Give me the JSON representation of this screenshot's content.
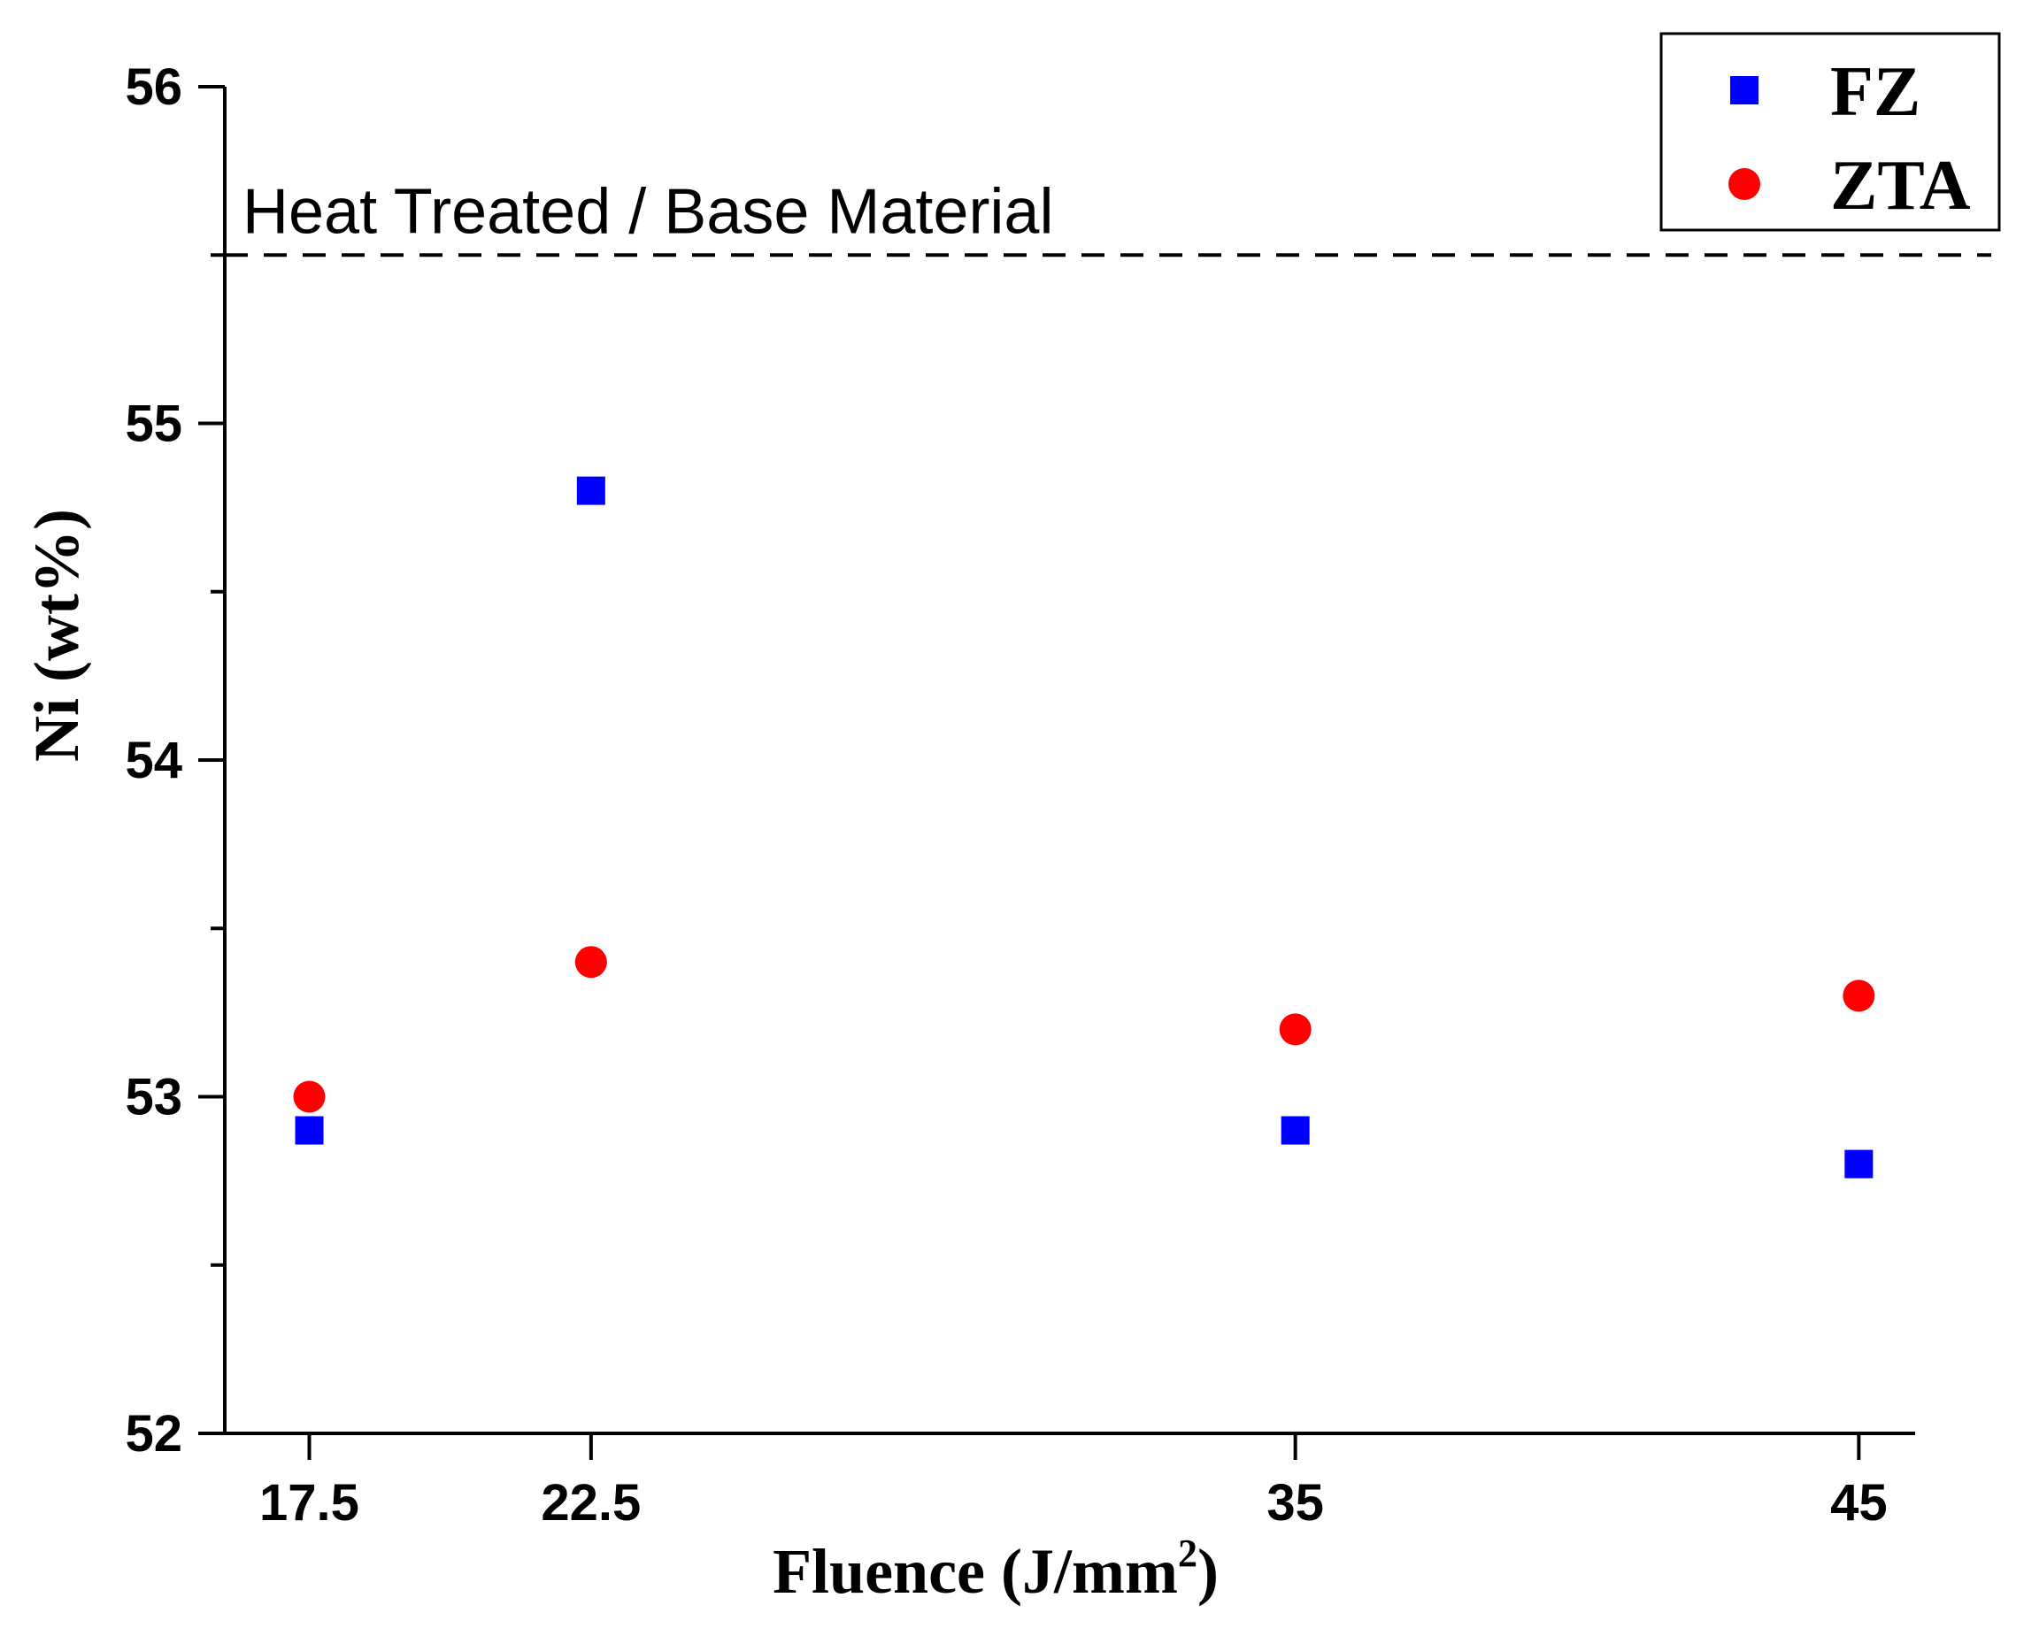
{
  "chart_data": {
    "type": "scatter",
    "title": "",
    "xlabel": "Fluence (J/mm",
    "xlabel_sup": "2",
    "xlabel_close": ")",
    "ylabel": "Ni (wt%)",
    "xlim": [
      16,
      46
    ],
    "ylim": [
      52,
      56
    ],
    "x_ticks": [
      17.5,
      22.5,
      35,
      45
    ],
    "x_tick_labels": [
      "17.5",
      "22.5",
      "35",
      "45"
    ],
    "y_ticks": [
      52,
      53,
      54,
      55,
      56
    ],
    "y_tick_labels": [
      "52",
      "53",
      "54",
      "55",
      "56"
    ],
    "y_minor_ticks": [
      52.5,
      53.5,
      54.5,
      55.5
    ],
    "reference_line": {
      "y": 55.5,
      "label": "Heat Treated / Base Material",
      "style": "dashed"
    },
    "legend_position": "top-right",
    "series": [
      {
        "name": "FZ",
        "marker": "square",
        "color": "#0000ff",
        "x": [
          17.5,
          22.5,
          35,
          45
        ],
        "y": [
          52.9,
          54.8,
          52.9,
          52.8
        ]
      },
      {
        "name": "ZTA",
        "marker": "circle",
        "color": "#ff0000",
        "x": [
          17.5,
          22.5,
          35,
          45
        ],
        "y": [
          53.0,
          53.4,
          53.2,
          53.3
        ]
      }
    ]
  }
}
